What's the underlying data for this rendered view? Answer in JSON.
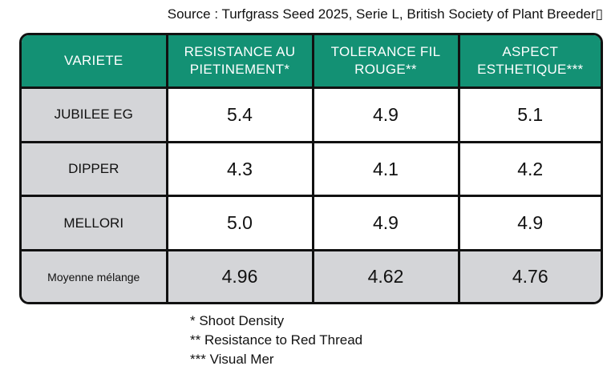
{
  "chart_data": {
    "type": "table",
    "source": "Source : Turfgrass Seed 2025, Serie L, British Society of Plant Breeder▯",
    "columns": [
      "VARIETE",
      "RESISTANCE AU PIETINEMENT*",
      "TOLERANCE FIL ROUGE**",
      "ASPECT ESTHETIQUE***"
    ],
    "rows": [
      {
        "variety": "JUBILEE EG",
        "values": [
          "5.4",
          "4.9",
          "5.1"
        ]
      },
      {
        "variety": "DIPPER",
        "values": [
          "4.3",
          "4.1",
          "4.2"
        ]
      },
      {
        "variety": "MELLORI",
        "values": [
          "5.0",
          "4.9",
          "4.9"
        ]
      }
    ],
    "average_row": {
      "variety": "Moyenne mélange",
      "values": [
        "4.96",
        "4.62",
        "4.76"
      ]
    },
    "footnotes": [
      "* Shoot Density",
      "** Resistance to Red Thread",
      "*** Visual Mer"
    ]
  },
  "colors": {
    "header_bg": "#139174",
    "label_bg": "#d4d5d8",
    "border": "#111111"
  }
}
